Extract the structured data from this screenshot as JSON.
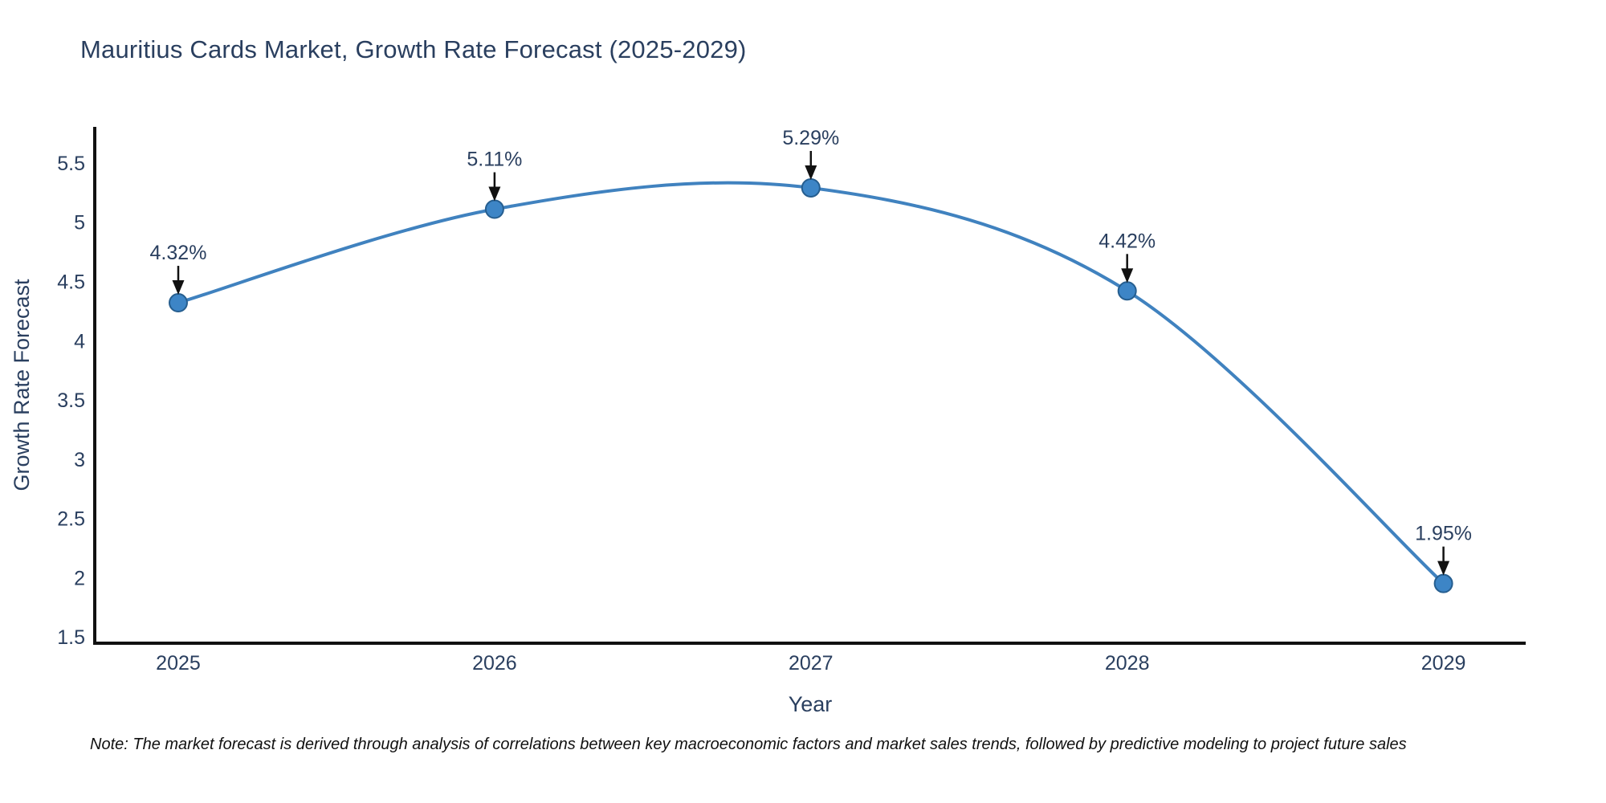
{
  "chart_data": {
    "type": "line",
    "title": "Mauritius Cards Market, Growth Rate Forecast (2025-2029)",
    "xlabel": "Year",
    "ylabel": "Growth Rate Forecast",
    "x": [
      2025,
      2026,
      2027,
      2028,
      2029
    ],
    "series": [
      {
        "name": "Growth Rate Forecast",
        "values": [
          4.32,
          5.11,
          5.29,
          4.42,
          1.95
        ],
        "point_labels": [
          "4.32%",
          "5.11%",
          "5.29%",
          "4.42%",
          "1.95%"
        ]
      }
    ],
    "line_shape": "spline",
    "grid": false,
    "legend_position": "none",
    "xlim": [
      2024.736,
      2029.26
    ],
    "ylim": [
      1.446,
      5.805
    ],
    "xticks": [
      "2025",
      "2026",
      "2027",
      "2028",
      "2029"
    ],
    "xtick_values": [
      2025,
      2026,
      2027,
      2028,
      2029
    ],
    "yticks": [
      "1.5",
      "2",
      "2.5",
      "3",
      "3.5",
      "4",
      "4.5",
      "5",
      "5.5"
    ],
    "ytick_values": [
      1.5,
      2,
      2.5,
      3,
      3.5,
      4,
      4.5,
      5,
      5.5
    ]
  },
  "note": "Note: The market forecast is derived through analysis of correlations between key macroeconomic factors and market sales trends, followed by predictive modeling to project future sales",
  "colors": {
    "title_text": "#2a3f5f",
    "axis_text": "#2a3f5f",
    "axis_line": "#111111",
    "series_line": "#4082bf",
    "marker_fill": "#3d85c6",
    "marker_edge": "#265e8f",
    "annotation_text": "#2a3f5f",
    "arrow": "#111111",
    "background": "#ffffff"
  }
}
